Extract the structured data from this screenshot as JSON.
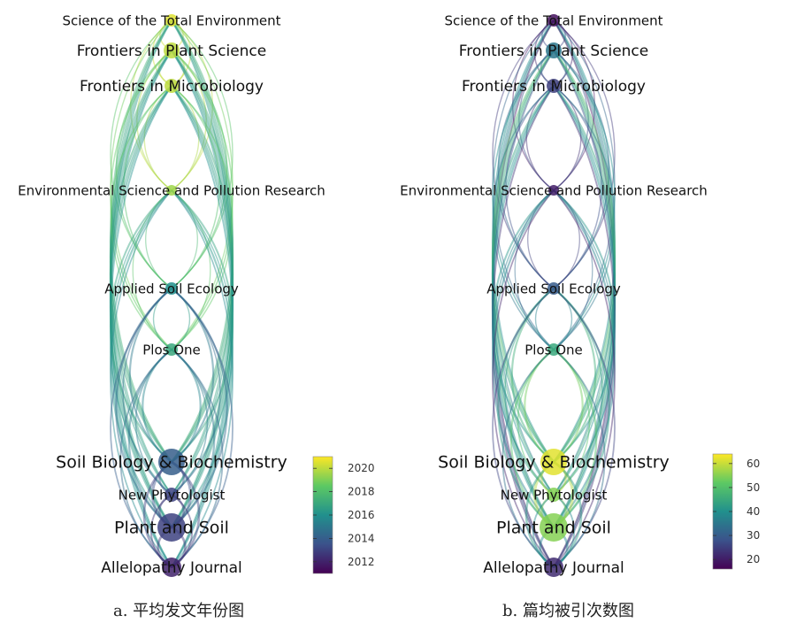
{
  "panels": [
    {
      "id": "a",
      "caption": "a. 平均发文年份图",
      "colorbar": {
        "ticks": [
          "2020",
          "2018",
          "2016",
          "2014",
          "2012"
        ],
        "min": 2011,
        "max": 2021
      },
      "nodes": [
        {
          "label": "Science of the Total Environment",
          "value": 2020.5,
          "size": 7
        },
        {
          "label": "Frontiers in Plant Science",
          "value": 2020,
          "size": 9
        },
        {
          "label": "Frontiers in Microbiology",
          "value": 2020,
          "size": 8
        },
        {
          "label": "Environmental Science and Pollution Research",
          "value": 2019.5,
          "size": 6
        },
        {
          "label": "Applied Soil Ecology",
          "value": 2016,
          "size": 7
        },
        {
          "label": "Plos One",
          "value": 2017,
          "size": 7
        },
        {
          "label": "Soil Biology & Biochemistry",
          "value": 2014,
          "size": 15
        },
        {
          "label": "New Phytologist",
          "value": 2013,
          "size": 8
        },
        {
          "label": "Plant and Soil",
          "value": 2013,
          "size": 16
        },
        {
          "label": "Allelopathy Journal",
          "value": 2012,
          "size": 11
        }
      ]
    },
    {
      "id": "b",
      "caption": "b. 篇均被引次数图",
      "colorbar": {
        "ticks": [
          "60",
          "50",
          "40",
          "30",
          "20"
        ],
        "min": 16,
        "max": 64
      },
      "nodes": [
        {
          "label": "Science of the Total Environment",
          "value": 18,
          "size": 7
        },
        {
          "label": "Frontiers in Plant Science",
          "value": 35,
          "size": 9
        },
        {
          "label": "Frontiers in Microbiology",
          "value": 25,
          "size": 8
        },
        {
          "label": "Environmental Science and Pollution Research",
          "value": 20,
          "size": 6
        },
        {
          "label": "Applied Soil Ecology",
          "value": 30,
          "size": 7
        },
        {
          "label": "Plos One",
          "value": 45,
          "size": 7
        },
        {
          "label": "Soil Biology & Biochemistry",
          "value": 62,
          "size": 15
        },
        {
          "label": "New Phytologist",
          "value": 55,
          "size": 8
        },
        {
          "label": "Plant and Soil",
          "value": 55,
          "size": 16
        },
        {
          "label": "Allelopathy Journal",
          "value": 22,
          "size": 11
        }
      ]
    }
  ]
}
